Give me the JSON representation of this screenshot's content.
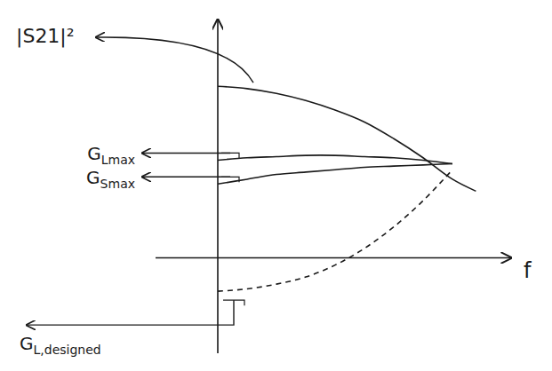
{
  "chart_data": {
    "type": "line",
    "y_label": "|S21|²",
    "x_label": "f",
    "tick_labels": false,
    "xlim": [
      0,
      10
    ],
    "ylim": [
      -4,
      10
    ],
    "x": [
      0,
      1,
      2,
      3,
      4,
      5,
      6,
      7,
      8,
      8.8
    ],
    "series": [
      {
        "values": [
          7.2,
          7.1,
          6.9,
          6.6,
          6.2,
          5.7,
          5.0,
          4.2,
          3.3,
          2.8
        ],
        "color": "#1a1a1a",
        "line_style": "solid"
      },
      {
        "name": "GLmax",
        "values": [
          4.1,
          4.2,
          4.25,
          4.3,
          4.3,
          4.25,
          4.2,
          4.1,
          3.95,
          null
        ],
        "color": "#1a1a1a",
        "line_style": "solid"
      },
      {
        "name": "GSmax",
        "values": [
          3.1,
          3.3,
          3.5,
          3.6,
          3.7,
          3.8,
          3.85,
          3.9,
          3.95,
          null
        ],
        "color": "#1a1a1a",
        "line_style": "solid"
      },
      {
        "name": "GL,designed",
        "values": [
          -1.4,
          -1.3,
          -1.1,
          -0.8,
          -0.3,
          0.4,
          1.3,
          2.4,
          3.7,
          null
        ],
        "color": "#1a1a1a",
        "line_style": "dashed"
      }
    ]
  }
}
